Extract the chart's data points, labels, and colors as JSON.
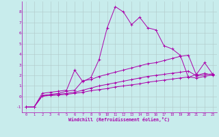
{
  "background_color": "#c8ecec",
  "grid_color": "#b0c8c8",
  "line_color": "#aa00aa",
  "xlabel": "Windchill (Refroidissement éolien,°C)",
  "xlim": [
    -0.5,
    23.5
  ],
  "ylim": [
    -1.5,
    9.0
  ],
  "xticks": [
    0,
    1,
    2,
    3,
    4,
    5,
    6,
    7,
    8,
    9,
    10,
    11,
    12,
    13,
    14,
    15,
    16,
    17,
    18,
    19,
    20,
    21,
    22,
    23
  ],
  "yticks": [
    -1,
    0,
    1,
    2,
    3,
    4,
    5,
    6,
    7,
    8
  ],
  "lines": [
    {
      "x": [
        0,
        1,
        2,
        3,
        4,
        5,
        6,
        7,
        8,
        9,
        10,
        11,
        12,
        13,
        14,
        15,
        16,
        17,
        18,
        19,
        20,
        21,
        22,
        23
      ],
      "y": [
        -1.0,
        -1.0,
        0.3,
        0.4,
        0.5,
        0.6,
        2.5,
        1.4,
        1.8,
        3.5,
        6.5,
        8.5,
        8.0,
        6.8,
        7.5,
        6.5,
        6.3,
        4.8,
        4.5,
        3.9,
        1.8,
        2.1,
        3.2,
        2.1
      ]
    },
    {
      "x": [
        0,
        1,
        2,
        3,
        4,
        5,
        6,
        7,
        8,
        9,
        10,
        11,
        12,
        13,
        14,
        15,
        16,
        17,
        18,
        19,
        20,
        21,
        22,
        23
      ],
      "y": [
        -1.0,
        -1.0,
        0.1,
        0.2,
        0.3,
        0.5,
        0.6,
        1.5,
        1.6,
        1.9,
        2.1,
        2.3,
        2.5,
        2.7,
        2.9,
        3.1,
        3.2,
        3.4,
        3.6,
        3.8,
        3.9,
        2.0,
        2.2,
        2.0
      ]
    },
    {
      "x": [
        0,
        1,
        2,
        3,
        4,
        5,
        6,
        7,
        8,
        9,
        10,
        11,
        12,
        13,
        14,
        15,
        16,
        17,
        18,
        19,
        20,
        21,
        22,
        23
      ],
      "y": [
        -1.0,
        -1.0,
        0.05,
        0.1,
        0.2,
        0.3,
        0.4,
        0.6,
        0.8,
        1.0,
        1.15,
        1.3,
        1.45,
        1.6,
        1.75,
        1.9,
        2.0,
        2.1,
        2.2,
        2.3,
        2.4,
        1.95,
        2.05,
        2.15
      ]
    },
    {
      "x": [
        0,
        1,
        2,
        3,
        4,
        5,
        6,
        7,
        8,
        9,
        10,
        11,
        12,
        13,
        14,
        15,
        16,
        17,
        18,
        19,
        20,
        21,
        22,
        23
      ],
      "y": [
        -1.0,
        -1.0,
        0.05,
        0.1,
        0.15,
        0.2,
        0.3,
        0.4,
        0.55,
        0.65,
        0.75,
        0.9,
        1.0,
        1.1,
        1.2,
        1.35,
        1.45,
        1.55,
        1.65,
        1.75,
        1.85,
        1.75,
        1.9,
        2.05
      ]
    }
  ]
}
